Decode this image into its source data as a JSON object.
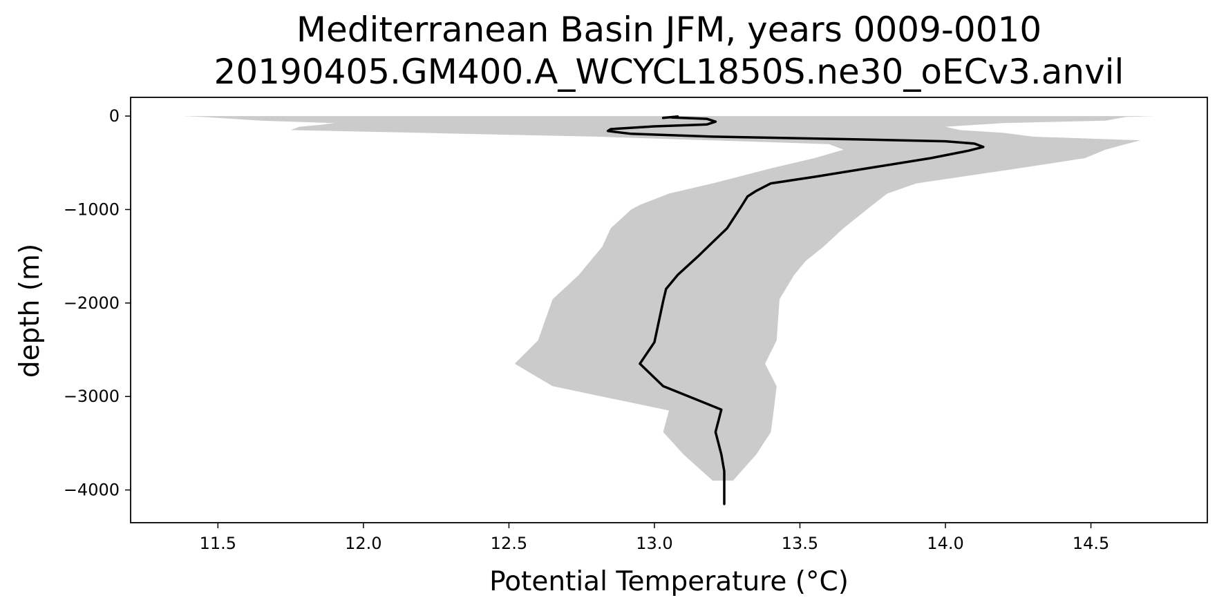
{
  "chart_data": {
    "type": "line",
    "title": "Mediterranean Basin JFM, years 0009-0010",
    "subtitle": "20190405.GM400.A_WCYCL1850S.ne30_oECv3.anvil",
    "xlabel": "Potential Temperature (°C)",
    "ylabel": "depth (m)",
    "xlim": [
      11.2,
      14.9
    ],
    "ylim": [
      -4350,
      200
    ],
    "xticks": [
      11.5,
      12.0,
      12.5,
      13.0,
      13.5,
      14.0,
      14.5
    ],
    "xtick_labels": [
      "11.5",
      "12.0",
      "12.5",
      "13.0",
      "13.5",
      "14.0",
      "14.5"
    ],
    "yticks": [
      0,
      -1000,
      -2000,
      -3000,
      -4000
    ],
    "ytick_labels": [
      "0",
      "−1000",
      "−2000",
      "−3000",
      "−4000"
    ],
    "grid": false,
    "colors": {
      "line": "#000000",
      "band": "#cbcbcb"
    },
    "series": [
      {
        "x": [
          13.03,
          13.08,
          13.06,
          13.18,
          13.21,
          13.18,
          13.0,
          12.85,
          12.84,
          12.92,
          13.2,
          13.7,
          14.0,
          14.1,
          14.13,
          14.08,
          13.95,
          13.75,
          13.55,
          13.4,
          13.35,
          13.32,
          13.3,
          13.25,
          13.15,
          13.08,
          13.04,
          13.03,
          13.0,
          12.95,
          13.03,
          13.23,
          13.21,
          13.23,
          13.24,
          13.24,
          13.24
        ],
        "y": [
          -20,
          -5,
          -15,
          -30,
          -60,
          -90,
          -110,
          -140,
          -160,
          -190,
          -220,
          -250,
          -270,
          -295,
          -330,
          -370,
          -450,
          -550,
          -650,
          -720,
          -800,
          -860,
          -960,
          -1200,
          -1500,
          -1700,
          -1850,
          -1980,
          -2420,
          -2650,
          -2890,
          -3140,
          -3380,
          -3620,
          -3800,
          -3950,
          -4150
        ]
      },
      {
        "band_depth": [
          0,
          -10,
          -50,
          -75,
          -95,
          -115,
          -150,
          -180,
          -220,
          -260,
          -300,
          -360,
          -450,
          -560,
          -720,
          -830,
          -950,
          -1000,
          -1200,
          -1400,
          -1550,
          -1700,
          -1960,
          -2400,
          -2650,
          -2890,
          -3150,
          -3380,
          -3620,
          -3900
        ],
        "band_lower": [
          11.38,
          11.45,
          11.65,
          11.9,
          11.85,
          11.78,
          11.75,
          12.2,
          12.8,
          13.2,
          13.6,
          13.65,
          13.55,
          13.4,
          13.2,
          13.05,
          12.95,
          12.92,
          12.85,
          12.82,
          12.78,
          12.74,
          12.65,
          12.6,
          12.52,
          12.65,
          13.05,
          13.03,
          13.1,
          13.2
        ],
        "band_upper": [
          14.72,
          14.62,
          14.55,
          14.2,
          14.1,
          14.0,
          14.05,
          14.2,
          14.3,
          14.67,
          14.62,
          14.55,
          14.48,
          14.25,
          13.9,
          13.8,
          13.75,
          13.73,
          13.65,
          13.58,
          13.52,
          13.48,
          13.43,
          13.42,
          13.38,
          13.42,
          13.41,
          13.4,
          13.35,
          13.27
        ]
      }
    ]
  }
}
